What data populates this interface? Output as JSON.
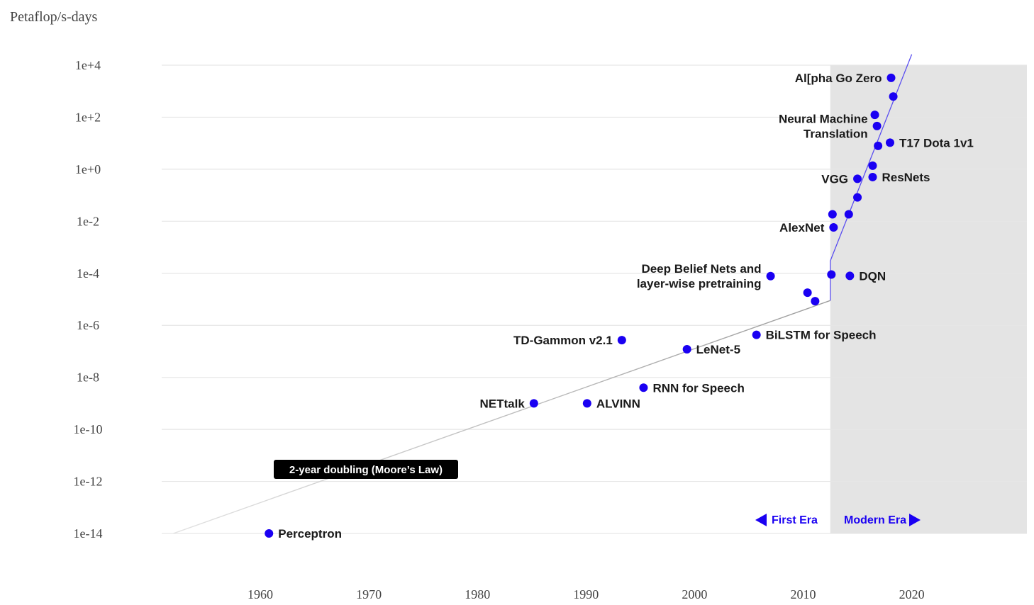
{
  "chart_data": {
    "type": "scatter",
    "ylabel": "Petaflop/s-days",
    "y_scale": "log",
    "ylim": [
      1e-14,
      10000.0
    ],
    "xlim": [
      1951,
      2030
    ],
    "y_ticks": [
      {
        "value": 10000.0,
        "label": "1e+4"
      },
      {
        "value": 100.0,
        "label": "1e+2"
      },
      {
        "value": 1,
        "label": "1e+0"
      },
      {
        "value": 0.01,
        "label": "1e-2"
      },
      {
        "value": 0.0001,
        "label": "1e-4"
      },
      {
        "value": 1e-06,
        "label": "1e-6"
      },
      {
        "value": 1e-08,
        "label": "1e-8"
      },
      {
        "value": 1e-10,
        "label": "1e-10"
      },
      {
        "value": 1e-12,
        "label": "1e-12"
      },
      {
        "value": 1e-14,
        "label": "1e-14"
      }
    ],
    "x_ticks": [
      {
        "value": 1960,
        "label": "1960"
      },
      {
        "value": 1970,
        "label": "1970"
      },
      {
        "value": 1980,
        "label": "1980"
      },
      {
        "value": 1990,
        "label": "1990"
      },
      {
        "value": 2000,
        "label": "2000"
      },
      {
        "value": 2010,
        "label": "2010"
      },
      {
        "value": 2020,
        "label": "2020"
      }
    ],
    "grid": true,
    "point_color": "#1a00f2",
    "points": [
      {
        "x": 1960.8,
        "y": 1e-14,
        "label": "Perceptron",
        "label_side": "right"
      },
      {
        "x": 1985.2,
        "y": 1e-09,
        "label": "NETtalk",
        "label_side": "left"
      },
      {
        "x": 1990.1,
        "y": 1e-09,
        "label": "ALVINN",
        "label_side": "right"
      },
      {
        "x": 1995.3,
        "y": 4e-09,
        "label": "RNN for Speech",
        "label_side": "right"
      },
      {
        "x": 1993.3,
        "y": 2.7e-07,
        "label": "TD-Gammon v2.1",
        "label_side": "left"
      },
      {
        "x": 1999.3,
        "y": 1.2e-07,
        "label": "LeNet-5",
        "label_side": "right"
      },
      {
        "x": 2005.7,
        "y": 4.3e-07,
        "label": "BiLSTM for Speech",
        "label_side": "right"
      },
      {
        "x": 2007.0,
        "y": 7.8e-05,
        "label": "Deep Belief Nets and|layer-wise pretraining",
        "label_side": "left"
      },
      {
        "x": 2010.4,
        "y": 1.8e-05
      },
      {
        "x": 2011.1,
        "y": 8.5e-06
      },
      {
        "x": 2012.6,
        "y": 9e-05
      },
      {
        "x": 2014.3,
        "y": 8e-05,
        "label": "DQN",
        "label_side": "right"
      },
      {
        "x": 2012.8,
        "y": 0.0058,
        "label": "AlexNet",
        "label_side": "left"
      },
      {
        "x": 2012.7,
        "y": 0.0185
      },
      {
        "x": 2014.2,
        "y": 0.0185
      },
      {
        "x": 2015.0,
        "y": 0.083
      },
      {
        "x": 2015.0,
        "y": 0.43,
        "label": "VGG",
        "label_side": "left"
      },
      {
        "x": 2016.4,
        "y": 0.5,
        "label": "ResNets",
        "label_side": "right"
      },
      {
        "x": 2016.4,
        "y": 1.37
      },
      {
        "x": 2016.9,
        "y": 7.9
      },
      {
        "x": 2018.0,
        "y": 10.5,
        "label": "T17 Dota 1v1",
        "label_side": "right"
      },
      {
        "x": 2016.8,
        "y": 46,
        "label": "Neural Machine|Translation",
        "label_side": "left"
      },
      {
        "x": 2016.6,
        "y": 123
      },
      {
        "x": 2018.3,
        "y": 625
      },
      {
        "x": 2018.1,
        "y": 3270,
        "label": "Al[pha Go Zero",
        "label_side": "left"
      }
    ],
    "trend_lines": [
      {
        "name": "2-year doubling (Moore's Law)",
        "points": [
          [
            1952,
            1e-14
          ],
          [
            2012.5,
            9e-06
          ]
        ]
      },
      {
        "name": "modern",
        "points": [
          [
            2012.5,
            9e-06
          ],
          [
            2012.5,
            0.0003
          ],
          [
            2020,
            26000.0
          ]
        ]
      }
    ],
    "annotation": "2-year doubling (Moore’s Law)",
    "era_split_x": 2012.5,
    "first_era_label": "First Era",
    "modern_era_label": "Modern Era"
  }
}
